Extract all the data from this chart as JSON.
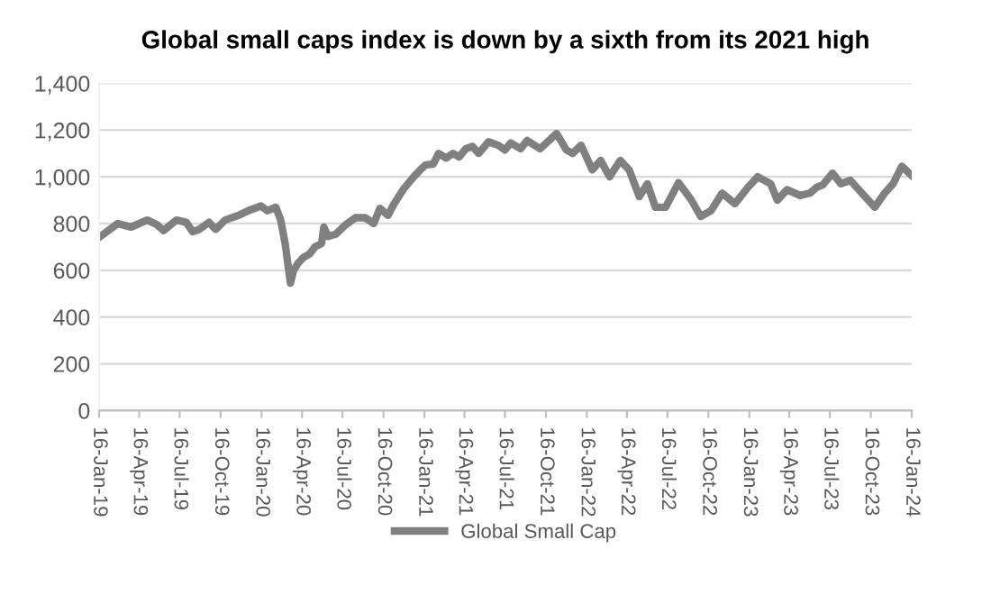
{
  "chart_data": {
    "type": "line",
    "title": "Global small caps index is down by a sixth from its 2021 high",
    "xlim": [
      "2019-01-16",
      "2024-01-16"
    ],
    "xticks": [
      {
        "value": "2019-01-16",
        "label": "16-Jan-19"
      },
      {
        "value": "2019-04-16",
        "label": "16-Apr-19"
      },
      {
        "value": "2019-07-16",
        "label": "16-Jul-19"
      },
      {
        "value": "2019-10-16",
        "label": "16-Oct-19"
      },
      {
        "value": "2020-01-16",
        "label": "16-Jan-20"
      },
      {
        "value": "2020-04-16",
        "label": "16-Apr-20"
      },
      {
        "value": "2020-07-16",
        "label": "16-Jul-20"
      },
      {
        "value": "2020-10-16",
        "label": "16-Oct-20"
      },
      {
        "value": "2021-01-16",
        "label": "16-Jan-21"
      },
      {
        "value": "2021-04-16",
        "label": "16-Apr-21"
      },
      {
        "value": "2021-07-16",
        "label": "16-Jul-21"
      },
      {
        "value": "2021-10-16",
        "label": "16-Oct-21"
      },
      {
        "value": "2022-01-16",
        "label": "16-Jan-22"
      },
      {
        "value": "2022-04-16",
        "label": "16-Apr-22"
      },
      {
        "value": "2022-07-16",
        "label": "16-Jul-22"
      },
      {
        "value": "2022-10-16",
        "label": "16-Oct-22"
      },
      {
        "value": "2023-01-16",
        "label": "16-Jan-23"
      },
      {
        "value": "2023-04-16",
        "label": "16-Apr-23"
      },
      {
        "value": "2023-07-16",
        "label": "16-Jul-23"
      },
      {
        "value": "2023-10-16",
        "label": "16-Oct-23"
      },
      {
        "value": "2024-01-16",
        "label": "16-Jan-24"
      }
    ],
    "ylim": [
      0,
      1400
    ],
    "yticks": [
      0,
      200,
      400,
      600,
      800,
      {
        "value": 1000,
        "label": "1,000"
      },
      {
        "value": 1200,
        "label": "1,200"
      },
      {
        "value": 1400,
        "label": "1,400"
      }
    ],
    "grid": "y",
    "legend": "bottom",
    "marker": "none",
    "line_style": "solid",
    "series": [
      {
        "name": "Global Small Cap",
        "color": "#808080",
        "x": [
          "2019-01-19",
          "2019-02-27",
          "2019-03-29",
          "2019-05-04",
          "2019-05-26",
          "2019-06-10",
          "2019-07-09",
          "2019-07-31",
          "2019-08-14",
          "2019-08-29",
          "2019-09-20",
          "2019-10-05",
          "2019-10-26",
          "2019-11-25",
          "2019-12-17",
          "2020-01-15",
          "2020-01-29",
          "2020-02-17",
          "2020-02-28",
          "2020-03-09",
          "2020-03-21",
          "2020-03-28",
          "2020-04-07",
          "2020-04-19",
          "2020-05-03",
          "2020-05-15",
          "2020-05-30",
          "2020-06-04",
          "2020-06-13",
          "2020-07-01",
          "2020-07-23",
          "2020-08-14",
          "2020-09-05",
          "2020-09-24",
          "2020-10-08",
          "2020-10-26",
          "2020-11-09",
          "2020-12-01",
          "2020-12-23",
          "2021-01-07",
          "2021-01-18",
          "2021-02-05",
          "2021-02-17",
          "2021-03-06",
          "2021-03-21",
          "2021-04-04",
          "2021-04-19",
          "2021-05-04",
          "2021-05-18",
          "2021-06-09",
          "2021-07-01",
          "2021-07-16",
          "2021-07-29",
          "2021-08-20",
          "2021-09-04",
          "2021-10-03",
          "2021-11-09",
          "2021-12-01",
          "2021-12-15",
          "2022-01-03",
          "2022-01-28",
          "2022-02-16",
          "2022-03-08",
          "2022-04-01",
          "2022-04-21",
          "2022-05-14",
          "2022-06-01",
          "2022-06-19",
          "2022-07-12",
          "2022-08-10",
          "2022-09-08",
          "2022-09-29",
          "2022-10-22",
          "2022-11-16",
          "2022-12-15",
          "2023-01-13",
          "2023-02-04",
          "2023-03-05",
          "2023-03-20",
          "2023-04-11",
          "2023-05-10",
          "2023-06-01",
          "2023-06-16",
          "2023-06-30",
          "2023-07-22",
          "2023-08-10",
          "2023-08-31",
          "2023-09-26",
          "2023-10-25",
          "2023-11-16",
          "2023-12-05",
          "2023-12-25",
          "2024-01-16"
        ],
        "values": [
          745,
          800,
          785,
          815,
          795,
          770,
          815,
          805,
          765,
          775,
          805,
          775,
          815,
          835,
          855,
          875,
          855,
          870,
          815,
          715,
          545,
          600,
          630,
          655,
          670,
          700,
          715,
          785,
          745,
          755,
          795,
          825,
          825,
          800,
          865,
          835,
          885,
          950,
          1000,
          1030,
          1050,
          1055,
          1100,
          1080,
          1100,
          1085,
          1120,
          1130,
          1100,
          1150,
          1135,
          1115,
          1145,
          1120,
          1155,
          1120,
          1185,
          1115,
          1100,
          1135,
          1030,
          1070,
          1000,
          1070,
          1030,
          915,
          970,
          870,
          870,
          975,
          900,
          830,
          855,
          930,
          885,
          955,
          1000,
          970,
          900,
          945,
          920,
          930,
          955,
          965,
          1015,
          970,
          985,
          930,
          870,
          930,
          970,
          1045,
          1005
        ]
      }
    ]
  }
}
